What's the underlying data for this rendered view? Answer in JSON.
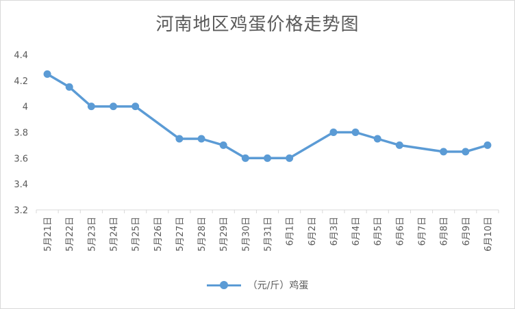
{
  "chart_data": {
    "type": "line",
    "title": "河南地区鸡蛋价格走势图",
    "categories": [
      "5月21日",
      "5月22日",
      "5月23日",
      "5月24日",
      "5月25日",
      "5月26日",
      "5月27日",
      "5月28日",
      "5月29日",
      "5月30日",
      "5月31日",
      "6月1日",
      "6月2日",
      "6月3日",
      "6月4日",
      "6月5日",
      "6月6日",
      "6月7日",
      "6月8日",
      "6月9日",
      "6月10日"
    ],
    "series": [
      {
        "name": "（元/斤）鸡蛋",
        "values": [
          4.25,
          4.15,
          4.0,
          4.0,
          4.0,
          null,
          3.75,
          3.75,
          3.7,
          3.6,
          3.6,
          3.6,
          null,
          3.8,
          3.8,
          3.75,
          3.7,
          null,
          3.65,
          3.65,
          3.7
        ],
        "color": "#5b9bd5"
      }
    ],
    "yticks": [
      "3.2",
      "3.4",
      "3.6",
      "3.8",
      "4",
      "4.2",
      "4.4"
    ],
    "ylim": [
      3.2,
      4.4
    ],
    "grid": false,
    "legend": "bottom",
    "connect_gaps": true
  }
}
